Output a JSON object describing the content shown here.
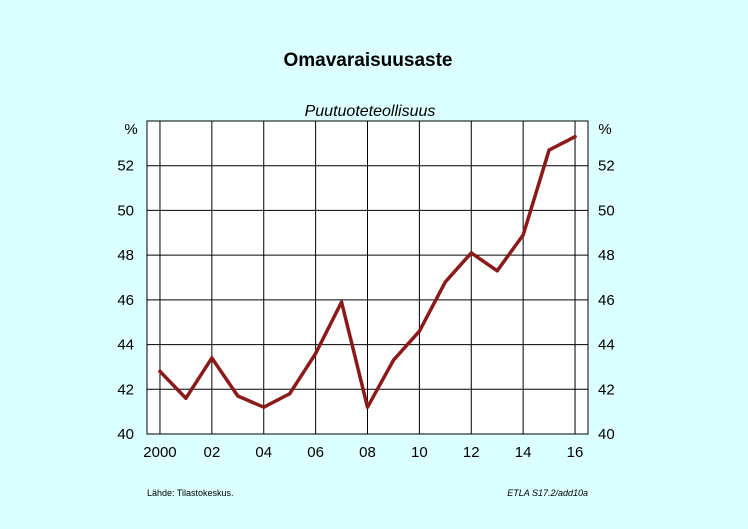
{
  "chart_data": {
    "type": "line",
    "title": "Omavaraisuusaste",
    "subtitle": "Puutuoteteollisuus",
    "unit_left": "%",
    "unit_right": "%",
    "x": [
      2000,
      2001,
      2002,
      2003,
      2004,
      2005,
      2006,
      2007,
      2008,
      2009,
      2010,
      2011,
      2012,
      2013,
      2014,
      2015,
      2016
    ],
    "x_tick_values": [
      2000,
      2002,
      2004,
      2006,
      2008,
      2010,
      2012,
      2014,
      2016
    ],
    "x_tick_labels": [
      "2000",
      "02",
      "04",
      "06",
      "08",
      "10",
      "12",
      "14",
      "16"
    ],
    "y_ticks": [
      40,
      42,
      44,
      46,
      48,
      50,
      52
    ],
    "ylim": [
      40,
      54
    ],
    "xlim": [
      1999.5,
      2016.5
    ],
    "series": [
      {
        "values": [
          42.8,
          41.6,
          43.4,
          41.7,
          41.2,
          41.8,
          43.6,
          45.9,
          41.2,
          43.3,
          44.6,
          46.8,
          48.1,
          47.3,
          48.9,
          52.7,
          53.3
        ],
        "color": "#8b1a1a"
      }
    ],
    "grid": true,
    "source": "Lähde:   Tilastokeskus.",
    "code": "ETLA S17.2/add10a"
  }
}
